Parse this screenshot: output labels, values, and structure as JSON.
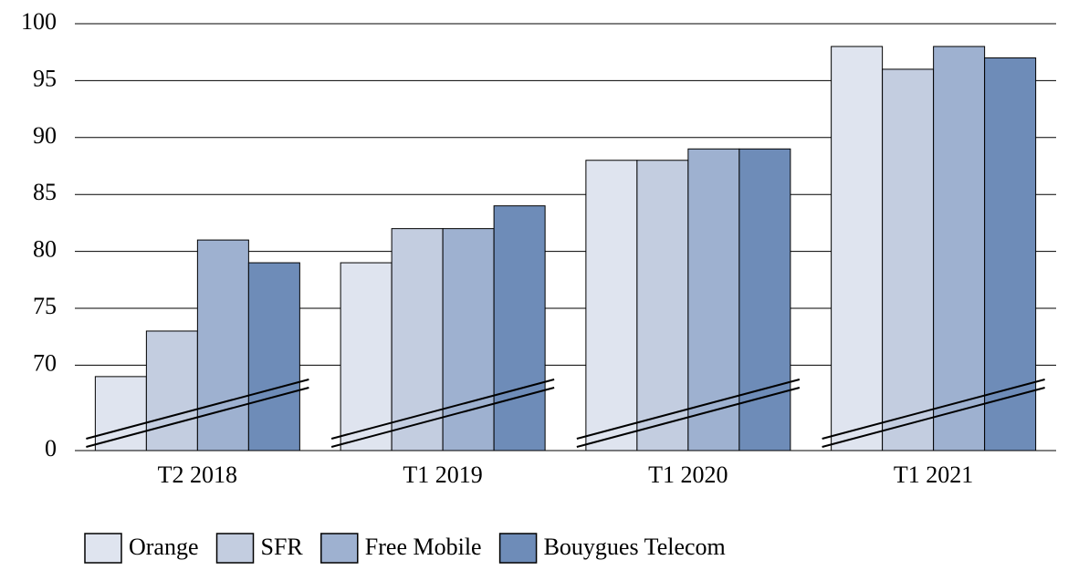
{
  "chart_data": {
    "type": "bar",
    "categories": [
      "T2 2018",
      "T1 2019",
      "T1 2020",
      "T1 2021"
    ],
    "series": [
      {
        "name": "Orange",
        "color": "#dfe4ef",
        "values": [
          69,
          79,
          88,
          98
        ]
      },
      {
        "name": "SFR",
        "color": "#c3cde0",
        "values": [
          73,
          82,
          88,
          96
        ]
      },
      {
        "name": "Free Mobile",
        "color": "#9eb1d0",
        "values": [
          81,
          82,
          89,
          98
        ]
      },
      {
        "name": "Bouygues Telecom",
        "color": "#6e8cb8",
        "values": [
          79,
          84,
          89,
          97
        ]
      }
    ],
    "ylim": [
      0,
      100
    ],
    "yticks": [
      0,
      70,
      75,
      80,
      85,
      90,
      95,
      100
    ],
    "broken_axis": true,
    "grid": true,
    "legend": "bottom"
  }
}
